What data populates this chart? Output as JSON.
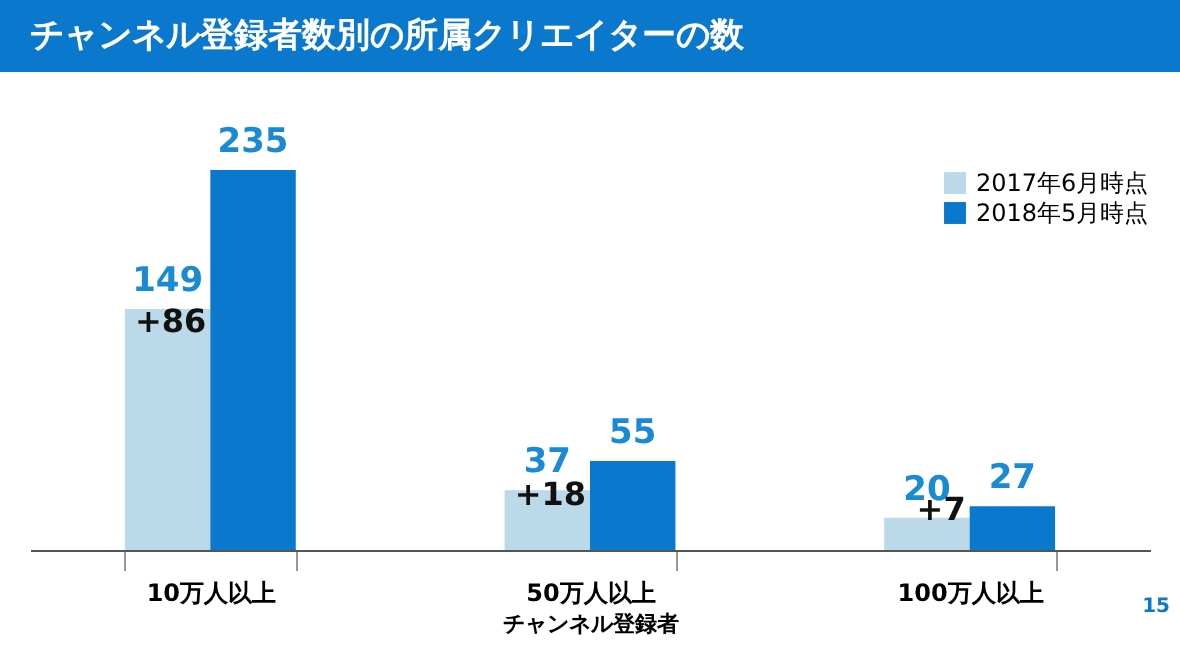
{
  "chart_data": {
    "type": "bar",
    "title": "チャンネル登録者数別の所属クリエイターの数",
    "xlabel": "チャンネル登録者",
    "categories": [
      "10万人以上",
      "50万人以上",
      "100万人以上"
    ],
    "series": [
      {
        "name": "2017年6月時点",
        "color": "#bcd9ea",
        "values": [
          149,
          37,
          20
        ]
      },
      {
        "name": "2018年5月時点",
        "color": "#0a78cc",
        "values": [
          235,
          55,
          27
        ]
      }
    ],
    "data_labels": true,
    "legend": "top right",
    "grid": false,
    "annotations": [
      {
        "text": "+86",
        "x": "10万人以上",
        "y": 141
      },
      {
        "text": "+18",
        "x": "50万人以上",
        "y": 34
      },
      {
        "text": "+7",
        "x": "100万人以上",
        "y": 25
      },
      "15"
    ]
  }
}
